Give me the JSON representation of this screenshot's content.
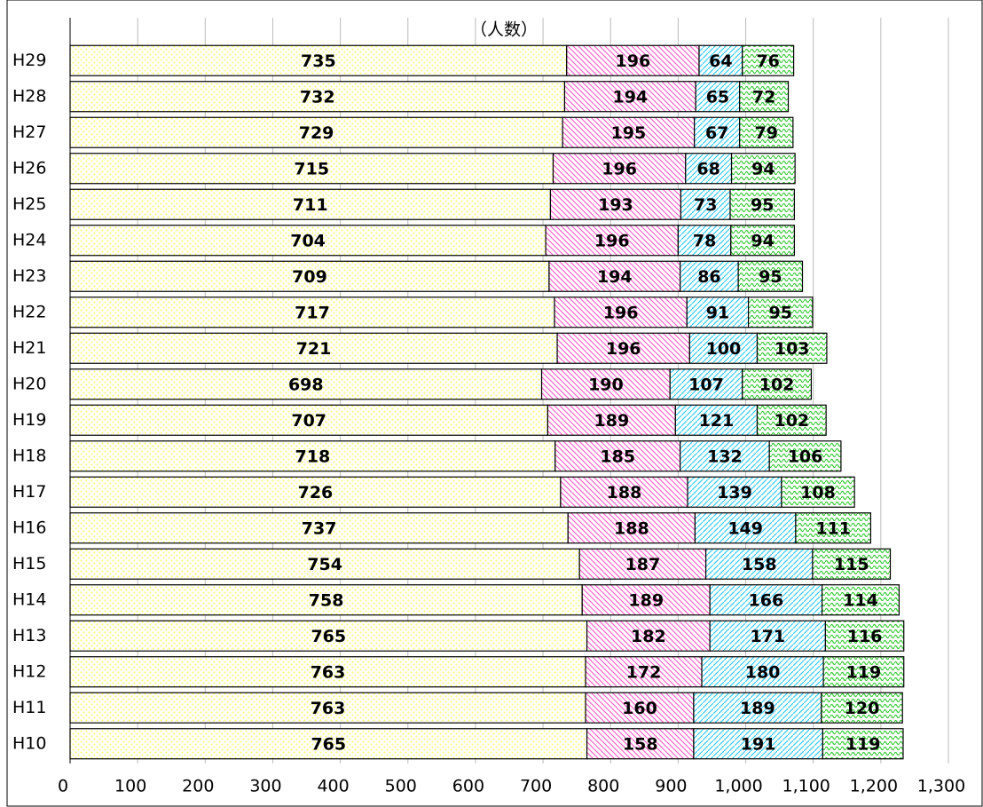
{
  "chart_data": {
    "type": "stacked_barh",
    "subtitle": "（人数）",
    "categories": [
      "H29",
      "H28",
      "H27",
      "H26",
      "H25",
      "H24",
      "H23",
      "H22",
      "H21",
      "H20",
      "H19",
      "H18",
      "H17",
      "H16",
      "H15",
      "H14",
      "H13",
      "H12",
      "H11",
      "H10"
    ],
    "series": [
      {
        "color": "#ffff66",
        "values": [
          735,
          732,
          729,
          715,
          711,
          704,
          709,
          717,
          721,
          698,
          707,
          718,
          726,
          737,
          754,
          758,
          765,
          763,
          763,
          765
        ]
      },
      {
        "color": "#ff66cc",
        "values": [
          196,
          194,
          195,
          196,
          193,
          196,
          194,
          196,
          196,
          190,
          189,
          185,
          188,
          188,
          187,
          189,
          182,
          172,
          160,
          158
        ]
      },
      {
        "color": "#33ccff",
        "values": [
          64,
          65,
          67,
          68,
          73,
          78,
          86,
          91,
          100,
          107,
          121,
          132,
          139,
          149,
          158,
          166,
          171,
          180,
          189,
          191
        ]
      },
      {
        "color": "#33cc33",
        "values": [
          76,
          72,
          79,
          94,
          95,
          94,
          95,
          95,
          103,
          102,
          102,
          106,
          108,
          111,
          115,
          114,
          116,
          119,
          120,
          119
        ]
      }
    ],
    "xlim": [
      0,
      1300
    ],
    "xticks": [
      0,
      100,
      200,
      300,
      400,
      500,
      600,
      700,
      800,
      900,
      {
        "value": 1000,
        "label": "1,000"
      },
      {
        "value": 1100,
        "label": "1,100"
      },
      {
        "value": 1200,
        "label": "1,200"
      },
      {
        "value": 1300,
        "label": "1,300"
      }
    ],
    "grid": true
  }
}
